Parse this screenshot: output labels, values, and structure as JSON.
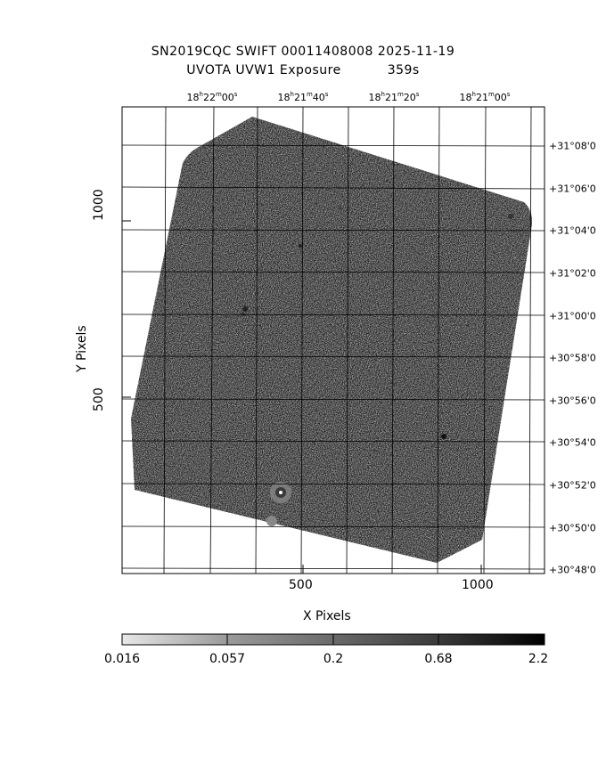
{
  "header": {
    "line1": "SN2019CQC SWIFT 00011408008 2025-11-19",
    "line2_left": "UVOTA UVW1 Exposure",
    "line2_right": "359s"
  },
  "axes": {
    "xlabel": "X Pixels",
    "ylabel": "Y Pixels",
    "x_ticks": [
      "500",
      "1000"
    ],
    "y_ticks": [
      "1000",
      "500"
    ]
  },
  "ra_ticks": [
    {
      "h": "18",
      "m": "22",
      "s": "00"
    },
    {
      "h": "18",
      "m": "21",
      "s": "40"
    },
    {
      "h": "18",
      "m": "21",
      "s": "20"
    },
    {
      "h": "18",
      "m": "21",
      "s": "00"
    }
  ],
  "dec_ticks": [
    "+31°08'0",
    "+31°06'0",
    "+31°04'0",
    "+31°02'0",
    "+31°00'0",
    "+30°58'0",
    "+30°56'0",
    "+30°54'0",
    "+30°52'0",
    "+30°50'0",
    "+30°48'0"
  ],
  "colorbar": {
    "labels": [
      "0.016",
      "0.057",
      "0.2",
      "0.68",
      "2.2"
    ]
  }
}
